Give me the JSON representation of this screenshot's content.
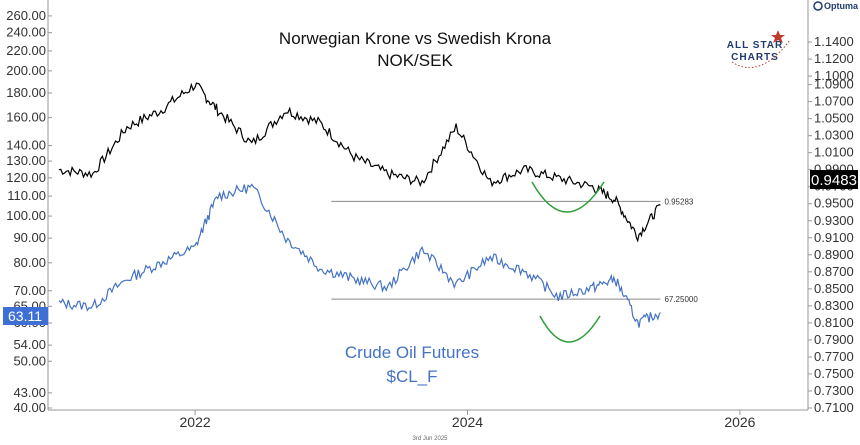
{
  "chart_data": {
    "type": "line",
    "title": "Norwegian Krone vs Swedish Krona",
    "subtitle": "NOK/SEK",
    "annotation": "Crude Oil Futures",
    "annotation_ticker": "$CL_F",
    "date_footer": "3rd Jun 2025",
    "x_ticks": [
      "2022",
      "2024",
      "2026"
    ],
    "series": [
      {
        "name": "NOK/SEK",
        "axis": "right",
        "color": "#000000",
        "last_value": "0.9483",
        "x": [
          "2021-01",
          "2021-04",
          "2021-07",
          "2021-10",
          "2022-01",
          "2022-03",
          "2022-06",
          "2022-09",
          "2022-12",
          "2023-03",
          "2023-06",
          "2023-09",
          "2023-12",
          "2024-03",
          "2024-06",
          "2024-09",
          "2024-12",
          "2025-02",
          "2025-04",
          "2025-06"
        ],
        "values": [
          0.99,
          0.985,
          1.04,
          1.06,
          1.09,
          1.06,
          1.02,
          1.06,
          1.045,
          1.005,
          0.985,
          0.975,
          1.04,
          0.975,
          0.99,
          0.98,
          0.97,
          0.955,
          0.912,
          0.948
        ]
      },
      {
        "name": "Crude Oil Futures",
        "axis": "left",
        "color": "#4472c4",
        "last_value": "63.11",
        "x": [
          "2021-01",
          "2021-04",
          "2021-07",
          "2021-10",
          "2022-01",
          "2022-03",
          "2022-06",
          "2022-09",
          "2022-12",
          "2023-03",
          "2023-06",
          "2023-09",
          "2023-12",
          "2024-03",
          "2024-06",
          "2024-09",
          "2024-12",
          "2025-02",
          "2025-04",
          "2025-06"
        ],
        "values": [
          66,
          65,
          74,
          80,
          86,
          110,
          115,
          90,
          78,
          74,
          71,
          85,
          72,
          82,
          77,
          68,
          71,
          74,
          60,
          63.11
        ]
      }
    ],
    "reference_lines": [
      {
        "label": "0.95283",
        "value": 0.95283,
        "axis": "right",
        "from": "2023-01",
        "to": "2025-06"
      },
      {
        "label": "67.25000",
        "value": 67.25,
        "axis": "left",
        "from": "2023-01",
        "to": "2025-06"
      }
    ],
    "left_axis": {
      "scale": "log",
      "ylim": [
        40,
        270
      ],
      "ticks": [
        "260.00",
        "240.00",
        "220.00",
        "200.00",
        "180.00",
        "160.00",
        "140.00",
        "130.00",
        "120.00",
        "110.00",
        "100.00",
        "90.00",
        "80.00",
        "70.00",
        "65.00",
        "60.00",
        "54.00",
        "50.00",
        "43.00",
        "40.00"
      ]
    },
    "right_axis": {
      "scale": "linear",
      "ylim": [
        0.71,
        1.18
      ],
      "ticks": [
        "1.1400",
        "1.1200",
        "1.1000",
        "1.0900",
        "1.0700",
        "1.0500",
        "1.0300",
        "1.0100",
        "0.9900",
        "0.9700",
        "0.9500",
        "0.9300",
        "0.9100",
        "0.8900",
        "0.8700",
        "0.8500",
        "0.8300",
        "0.8100",
        "0.7900",
        "0.7700",
        "0.7500",
        "0.7300",
        "0.7100"
      ]
    },
    "grid": false,
    "legend": "none"
  },
  "branding": {
    "logo_line1": "ALL STAR",
    "logo_line2": "CHARTS",
    "platform": "Optuma"
  }
}
